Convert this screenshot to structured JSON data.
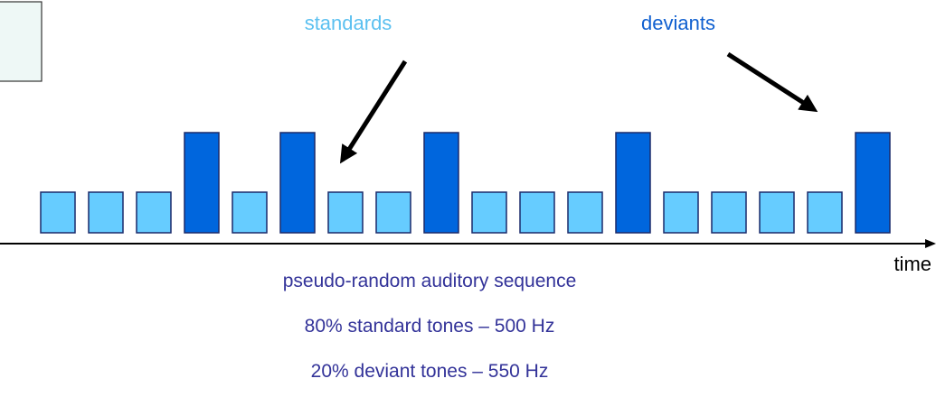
{
  "labels": {
    "standards": "standards",
    "deviants": "deviants",
    "axis": "time"
  },
  "caption": [
    "pseudo-random auditory sequence",
    "80% standard tones – 500 Hz",
    "20% deviant tones – 550 Hz"
  ]
}
